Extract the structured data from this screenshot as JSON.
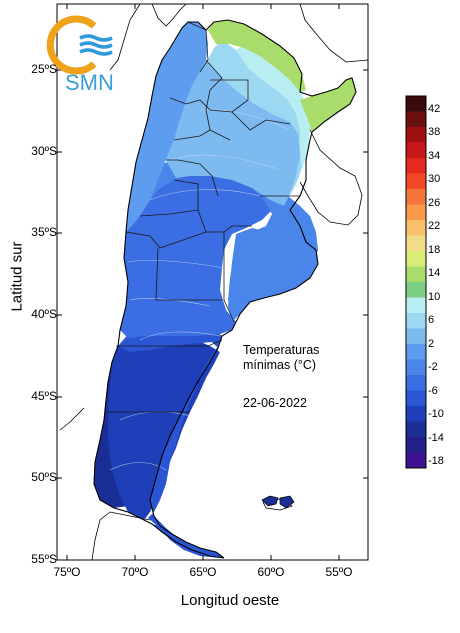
{
  "logo": {
    "text": "SMN"
  },
  "axes": {
    "ylabel": "Latitud sur",
    "xlabel": "Longitud oeste",
    "lat_ticks": [
      "25ºS",
      "30ºS",
      "35ºS",
      "40ºS",
      "45ºS",
      "50ºS",
      "55ºS"
    ],
    "lon_ticks": [
      "75ºO",
      "70ºO",
      "65ºO",
      "60ºO",
      "55ºO"
    ]
  },
  "annotation": {
    "title": "Temperaturas",
    "subtitle": "mínimas (°C)",
    "date": "22-06-2022"
  },
  "colorbar": {
    "labels": [
      "42",
      "38",
      "34",
      "30",
      "26",
      "22",
      "18",
      "14",
      "10",
      "6",
      "2",
      "-2",
      "-6",
      "-10",
      "-14",
      "-18"
    ],
    "colors": [
      "#3b0a0a",
      "#6b0f0f",
      "#a01010",
      "#c8191a",
      "#e42a20",
      "#f04a2a",
      "#f5763a",
      "#f89a4a",
      "#fbc06a",
      "#f2dc8a",
      "#d8ec7a",
      "#a9dc6a",
      "#7ccf84",
      "#b8eef2",
      "#9dd8f2",
      "#7cbaf0",
      "#5d9cee",
      "#4a86ea",
      "#3a6ee2",
      "#2a56d4",
      "#1e3fb8",
      "#1b2e96",
      "#221f86",
      "#3e1290"
    ]
  },
  "regions": {
    "colors": {
      "green": "#a9dc6a",
      "paleblue": "#b8eef2",
      "lightblue": "#9dd8f2",
      "blue1": "#7cbaf0",
      "blue2": "#5d9cee",
      "blue3": "#4a86ea",
      "blue4": "#3a6ee2",
      "dark1": "#2a56d4",
      "dark2": "#1e3fb8",
      "dark3": "#1b2e96"
    }
  }
}
